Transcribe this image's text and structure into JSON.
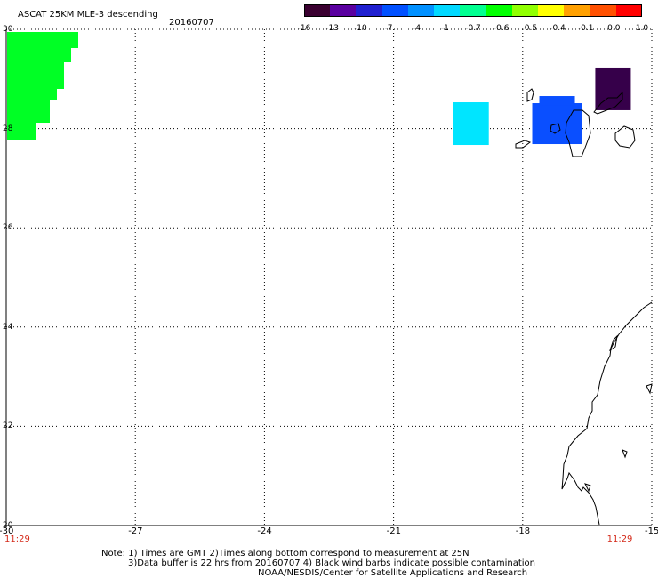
{
  "header": {
    "title": "ASCAT 25KM MLE-3 descending",
    "date": "20160707"
  },
  "colorbar": {
    "colors": [
      "#3a0030",
      "#5a00a0",
      "#2020d0",
      "#0050ff",
      "#0090ff",
      "#00d8ff",
      "#00ff90",
      "#00ff00",
      "#90ff00",
      "#ffff00",
      "#ffa000",
      "#ff5000",
      "#ff0000"
    ],
    "labels": [
      "-16",
      "-13",
      "-10",
      "-7",
      "-4",
      "-1",
      "-0.7",
      "-0.6",
      "-0.5",
      "-0.4",
      "-0.1",
      "0.0",
      "1.0"
    ]
  },
  "map": {
    "lon_range": [
      -30,
      -15
    ],
    "lat_range": [
      20,
      30
    ],
    "lon_ticks": [
      "-30",
      "-27",
      "-24",
      "-21",
      "-18",
      "-15"
    ],
    "lat_ticks": [
      "30",
      "28",
      "26",
      "24",
      "22",
      "20"
    ],
    "time_labels": [
      {
        "lon": -30,
        "text": "11:29"
      },
      {
        "lon": -16,
        "text": "11:29"
      }
    ],
    "cells": [
      {
        "lon": -29.7,
        "lat": 29.8,
        "color": "#00ff25"
      },
      {
        "lon": -19.2,
        "lat": 28.1,
        "color": "#00e5ff"
      },
      {
        "lon": -17.2,
        "lat": 28.1,
        "color": "#0a4fff"
      },
      {
        "lon": -15.9,
        "lat": 28.8,
        "color": "#36004a"
      }
    ]
  },
  "footer": {
    "note_line1": "Note: 1) Times are GMT 2)Times along bottom correspond to measurement at 25N",
    "note_line2": "3)Data buffer is 22 hrs from 20160707 4) Black wind barbs indicate possible contamination",
    "credit": "NOAA/NESDIS/Center for Satellite Applications and Research"
  }
}
